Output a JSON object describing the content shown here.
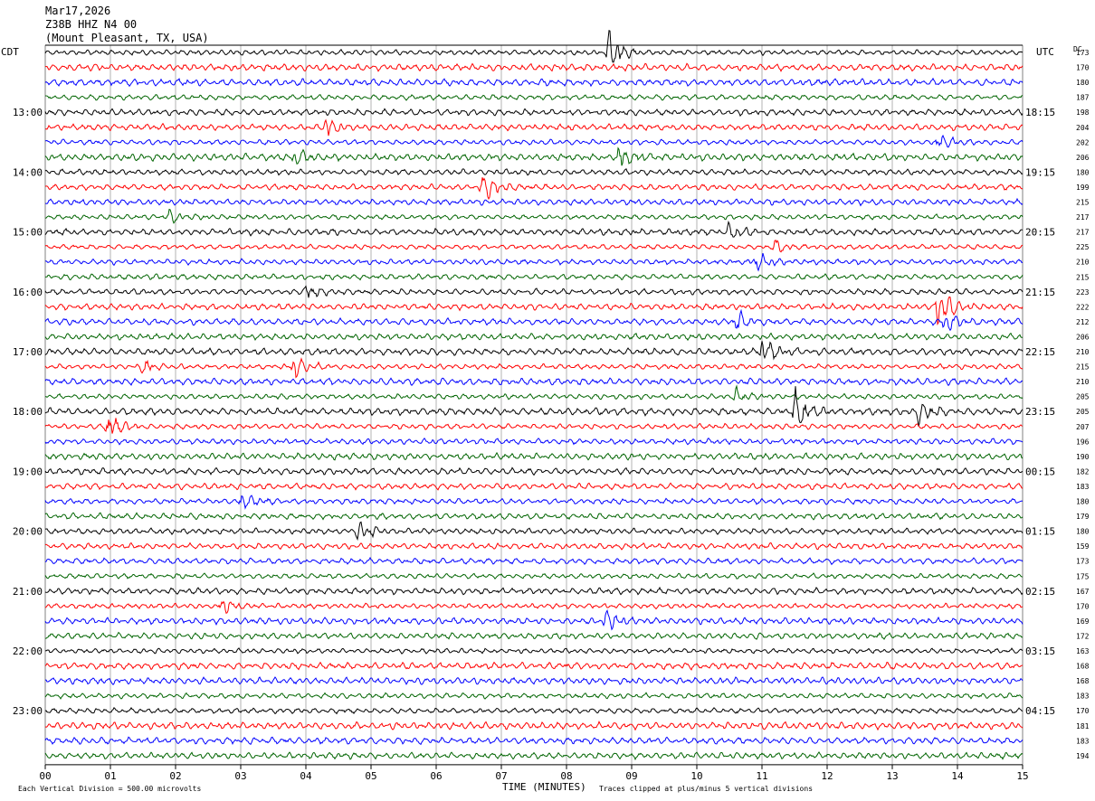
{
  "header": {
    "date": "Mar17,2026",
    "station": "Z38B HHZ N4 00",
    "location": "(Mount Pleasant, TX, USA)"
  },
  "left_timezone": "CDT",
  "right_timezone": "UTC",
  "dc_header": "DC",
  "footer": {
    "scale_note": "Each Vertical Division =  500.00 microvolts",
    "xlabel": "TIME (MINUTES)",
    "clip_note": "Traces clipped at plus/minus 5 vertical divisions"
  },
  "colors": {
    "trace_cycle": [
      "#000000",
      "#ff0000",
      "#0000ff",
      "#006400"
    ],
    "grid": "#808080"
  },
  "chart_data": {
    "type": "line",
    "subtype": "helicorder",
    "title": "Z38B HHZ N4 00",
    "xlabel": "TIME (MINUTES)",
    "xlim": [
      0,
      15
    ],
    "x_ticks": [
      "00",
      "01",
      "02",
      "03",
      "04",
      "05",
      "06",
      "07",
      "08",
      "09",
      "10",
      "11",
      "12",
      "13",
      "14",
      "15"
    ],
    "row_minutes": 15,
    "grid": true,
    "left_hour_labels": [
      {
        "row": 4,
        "label": "13:00"
      },
      {
        "row": 8,
        "label": "14:00"
      },
      {
        "row": 12,
        "label": "15:00"
      },
      {
        "row": 16,
        "label": "16:00"
      },
      {
        "row": 20,
        "label": "17:00"
      },
      {
        "row": 24,
        "label": "18:00"
      },
      {
        "row": 28,
        "label": "19:00"
      },
      {
        "row": 32,
        "label": "20:00"
      },
      {
        "row": 36,
        "label": "21:00"
      },
      {
        "row": 40,
        "label": "22:00"
      },
      {
        "row": 44,
        "label": "23:00"
      }
    ],
    "right_hour_labels": [
      {
        "row": 4,
        "label": "18:15"
      },
      {
        "row": 8,
        "label": "19:15"
      },
      {
        "row": 12,
        "label": "20:15"
      },
      {
        "row": 16,
        "label": "21:15"
      },
      {
        "row": 20,
        "label": "22:15"
      },
      {
        "row": 24,
        "label": "23:15"
      },
      {
        "row": 28,
        "label": "00:15"
      },
      {
        "row": 32,
        "label": "01:15"
      },
      {
        "row": 36,
        "label": "02:15"
      },
      {
        "row": 40,
        "label": "03:15"
      },
      {
        "row": 44,
        "label": "04:15"
      }
    ],
    "dc_offsets": [
      173,
      170,
      180,
      187,
      198,
      204,
      202,
      206,
      180,
      199,
      215,
      217,
      217,
      225,
      210,
      215,
      223,
      222,
      212,
      206,
      210,
      215,
      210,
      205,
      205,
      207,
      196,
      190,
      182,
      183,
      180,
      179,
      180,
      159,
      173,
      175,
      167,
      170,
      169,
      172,
      163,
      168,
      168,
      183,
      170,
      181,
      183,
      194
    ],
    "events": [
      {
        "row": 0,
        "minute": 8.65,
        "amplitude": 3.2
      },
      {
        "row": 5,
        "minute": 4.3,
        "amplitude": 1.3
      },
      {
        "row": 6,
        "minute": 13.7,
        "amplitude": 1.2
      },
      {
        "row": 7,
        "minute": 3.8,
        "amplitude": 1.0
      },
      {
        "row": 7,
        "minute": 8.8,
        "amplitude": 1.3
      },
      {
        "row": 9,
        "minute": 6.7,
        "amplitude": 2.0
      },
      {
        "row": 11,
        "minute": 1.9,
        "amplitude": 1.1
      },
      {
        "row": 12,
        "minute": 10.5,
        "amplitude": 1.0
      },
      {
        "row": 13,
        "minute": 11.2,
        "amplitude": 1.0
      },
      {
        "row": 14,
        "minute": 10.9,
        "amplitude": 1.3
      },
      {
        "row": 16,
        "minute": 4.0,
        "amplitude": 1.0
      },
      {
        "row": 17,
        "minute": 13.7,
        "amplitude": 2.8
      },
      {
        "row": 18,
        "minute": 13.8,
        "amplitude": 1.3
      },
      {
        "row": 18,
        "minute": 10.6,
        "amplitude": 1.1
      },
      {
        "row": 20,
        "minute": 11.0,
        "amplitude": 1.4
      },
      {
        "row": 21,
        "minute": 3.8,
        "amplitude": 2.0
      },
      {
        "row": 21,
        "minute": 1.5,
        "amplitude": 1.0
      },
      {
        "row": 23,
        "minute": 10.6,
        "amplitude": 1.0
      },
      {
        "row": 24,
        "minute": 11.5,
        "amplitude": 2.0
      },
      {
        "row": 24,
        "minute": 13.4,
        "amplitude": 1.2
      },
      {
        "row": 25,
        "minute": 0.95,
        "amplitude": 2.0
      },
      {
        "row": 30,
        "minute": 3.0,
        "amplitude": 1.4
      },
      {
        "row": 32,
        "minute": 4.8,
        "amplitude": 1.2
      },
      {
        "row": 37,
        "minute": 2.7,
        "amplitude": 1.1
      },
      {
        "row": 38,
        "minute": 8.6,
        "amplitude": 1.0
      }
    ]
  }
}
